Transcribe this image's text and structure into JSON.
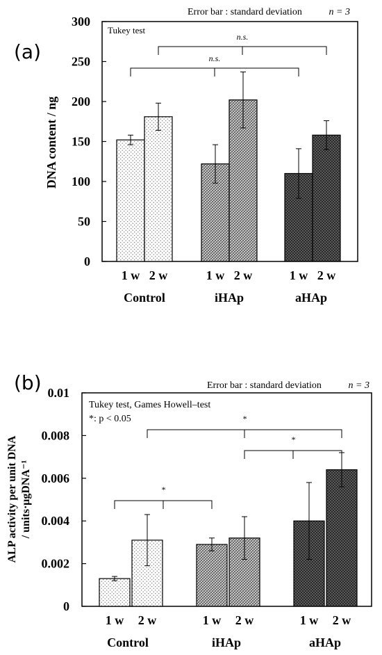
{
  "chart_data": [
    {
      "panel_label": "(a)",
      "type": "bar",
      "ylabel": "DNA content / ng",
      "ylim": [
        0,
        300
      ],
      "yticks": [
        "0",
        "50",
        "100",
        "150",
        "200",
        "250",
        "300"
      ],
      "groups": [
        "Control",
        "iHAp",
        "aHAp"
      ],
      "categories": [
        "1 w",
        "2 w",
        "1 w",
        "2 w",
        "1 w",
        "2 w"
      ],
      "values": [
        152,
        181,
        122,
        202,
        110,
        158
      ],
      "errors": [
        6,
        17,
        24,
        35,
        31,
        18
      ],
      "note_left": "Tukey test",
      "note_right_prefix": "Error bar :  standard deviation",
      "note_right_n": "n = 3",
      "comparisons": [
        {
          "from": 0,
          "to": 4,
          "label": "n.s."
        },
        {
          "from": 1,
          "to": 5,
          "label": "n.s."
        }
      ]
    },
    {
      "panel_label": "(b)",
      "type": "bar",
      "ylabel": "ALP activity per unit DNA / units·μgDNA⁻¹",
      "ylabel_line1": "ALP activity per unit DNA",
      "ylabel_line2": "/ units·μgDNA⁻¹",
      "ylim": [
        0,
        0.01
      ],
      "yticks": [
        "0",
        "0.002",
        "0.004",
        "0.006",
        "0.008",
        "0.01"
      ],
      "groups": [
        "Control",
        "iHAp",
        "aHAp"
      ],
      "categories": [
        "1 w",
        "2 w",
        "1 w",
        "2 w",
        "1 w",
        "2 w"
      ],
      "values": [
        0.0013,
        0.0031,
        0.0029,
        0.0032,
        0.004,
        0.0064
      ],
      "errors": [
        0.0001,
        0.0012,
        0.0003,
        0.001,
        0.0018,
        0.0008
      ],
      "note_left": "Tukey test, Games Howell–test",
      "note_left2": "*: p < 0.05",
      "note_right_prefix": "Error bar :  standard deviation",
      "note_right_n": "n = 3",
      "comparisons": [
        {
          "from": 0,
          "to": 2,
          "label": "*"
        },
        {
          "from": 1,
          "to": 5,
          "label": "*"
        },
        {
          "from": 3,
          "to": 5,
          "label": "*"
        }
      ]
    }
  ],
  "colors": {
    "control": "#bdbdbd",
    "ihap": "#6b6b6b",
    "ahap": "#202020"
  }
}
